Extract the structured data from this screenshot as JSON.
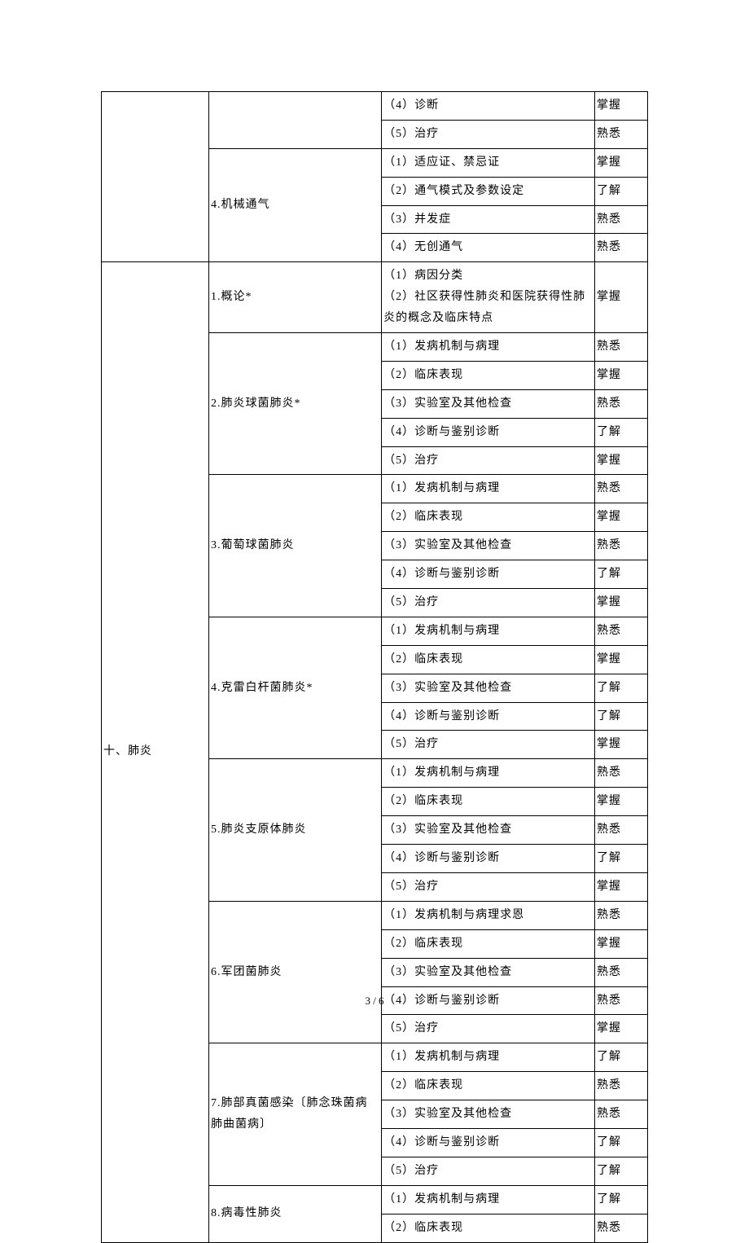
{
  "pageNumber": "3 / 6",
  "col1Label": "十、肺炎",
  "sections": [
    {
      "col2": "",
      "rows": [
        {
          "c3": "（4）诊断",
          "c4": "掌握"
        },
        {
          "c3": "（5）治疗",
          "c4": "熟悉"
        }
      ]
    },
    {
      "col2": "4.机械通气",
      "rows": [
        {
          "c3": "（1）适应证、禁忌证",
          "c4": "掌握"
        },
        {
          "c3": "（2）通气模式及参数设定",
          "c4": "了解"
        },
        {
          "c3": "（3）并发症",
          "c4": "熟悉"
        },
        {
          "c3": "（4）无创通气",
          "c4": "熟悉"
        }
      ]
    },
    {
      "col2": "1.概论*",
      "mergedC3": "（1）病因分类\n（2）社区获得性肺炎和医院获得性肺炎的概念及临床特点",
      "mergedC4": "掌握",
      "rowspan": 3
    },
    {
      "col2": "2.肺炎球菌肺炎*",
      "rows": [
        {
          "c3": "（1）发病机制与病理",
          "c4": "熟悉"
        },
        {
          "c3": "（2）临床表现",
          "c4": "掌握"
        },
        {
          "c3": "（3）实验室及其他检查",
          "c4": "熟悉"
        },
        {
          "c3": "（4）诊断与鉴别诊断",
          "c4": "了解"
        },
        {
          "c3": "（5）治疗",
          "c4": "掌握"
        }
      ]
    },
    {
      "col2": "3.葡萄球菌肺炎",
      "rows": [
        {
          "c3": "（1）发病机制与病理",
          "c4": "熟悉"
        },
        {
          "c3": "（2）临床表现",
          "c4": "掌握"
        },
        {
          "c3": "（3）实验室及其他检查",
          "c4": "熟悉"
        },
        {
          "c3": "（4）诊断与鉴别诊断",
          "c4": "了解"
        },
        {
          "c3": "（5）治疗",
          "c4": "掌握"
        }
      ]
    },
    {
      "col2": "4.克雷白杆菌肺炎*",
      "rows": [
        {
          "c3": "（1）发病机制与病理",
          "c4": "熟悉"
        },
        {
          "c3": "（2）临床表现",
          "c4": "掌握"
        },
        {
          "c3": "（3）实验室及其他检查",
          "c4": "了解"
        },
        {
          "c3": "（4）诊断与鉴别诊断",
          "c4": "了解"
        },
        {
          "c3": "（5）治疗",
          "c4": "掌握"
        }
      ]
    },
    {
      "col2": "5.肺炎支原体肺炎",
      "rows": [
        {
          "c3": "（1）发病机制与病理",
          "c4": "熟悉"
        },
        {
          "c3": "（2）临床表现",
          "c4": "掌握"
        },
        {
          "c3": "（3）实验室及其他检查",
          "c4": "熟悉"
        },
        {
          "c3": "（4）诊断与鉴别诊断",
          "c4": "了解"
        },
        {
          "c3": "（5）治疗",
          "c4": "掌握"
        }
      ]
    },
    {
      "col2": "6.军团菌肺炎",
      "rows": [
        {
          "c3": "（1）发病机制与病理求恩",
          "c4": "熟悉"
        },
        {
          "c3": "（2）临床表现",
          "c4": "掌握"
        },
        {
          "c3": "（3）实验室及其他检查",
          "c4": "熟悉"
        },
        {
          "c3": "（4）诊断与鉴别诊断",
          "c4": "熟悉"
        },
        {
          "c3": "（5）治疗",
          "c4": "掌握"
        }
      ]
    },
    {
      "col2": "7.肺部真菌感染〔肺念珠菌病肺曲菌病〕",
      "rows": [
        {
          "c3": "（1）发病机制与病理",
          "c4": "了解"
        },
        {
          "c3": "（2）临床表现",
          "c4": "熟悉"
        },
        {
          "c3": "（3）实验室及其他检查",
          "c4": "熟悉"
        },
        {
          "c3": "（4）诊断与鉴别诊断",
          "c4": "了解"
        },
        {
          "c3": "（5）治疗",
          "c4": "了解"
        }
      ]
    },
    {
      "col2": "8.病毒性肺炎",
      "rows": [
        {
          "c3": "（1）发病机制与病理",
          "c4": "了解"
        },
        {
          "c3": "（2）临床表现",
          "c4": "熟悉"
        }
      ]
    }
  ]
}
